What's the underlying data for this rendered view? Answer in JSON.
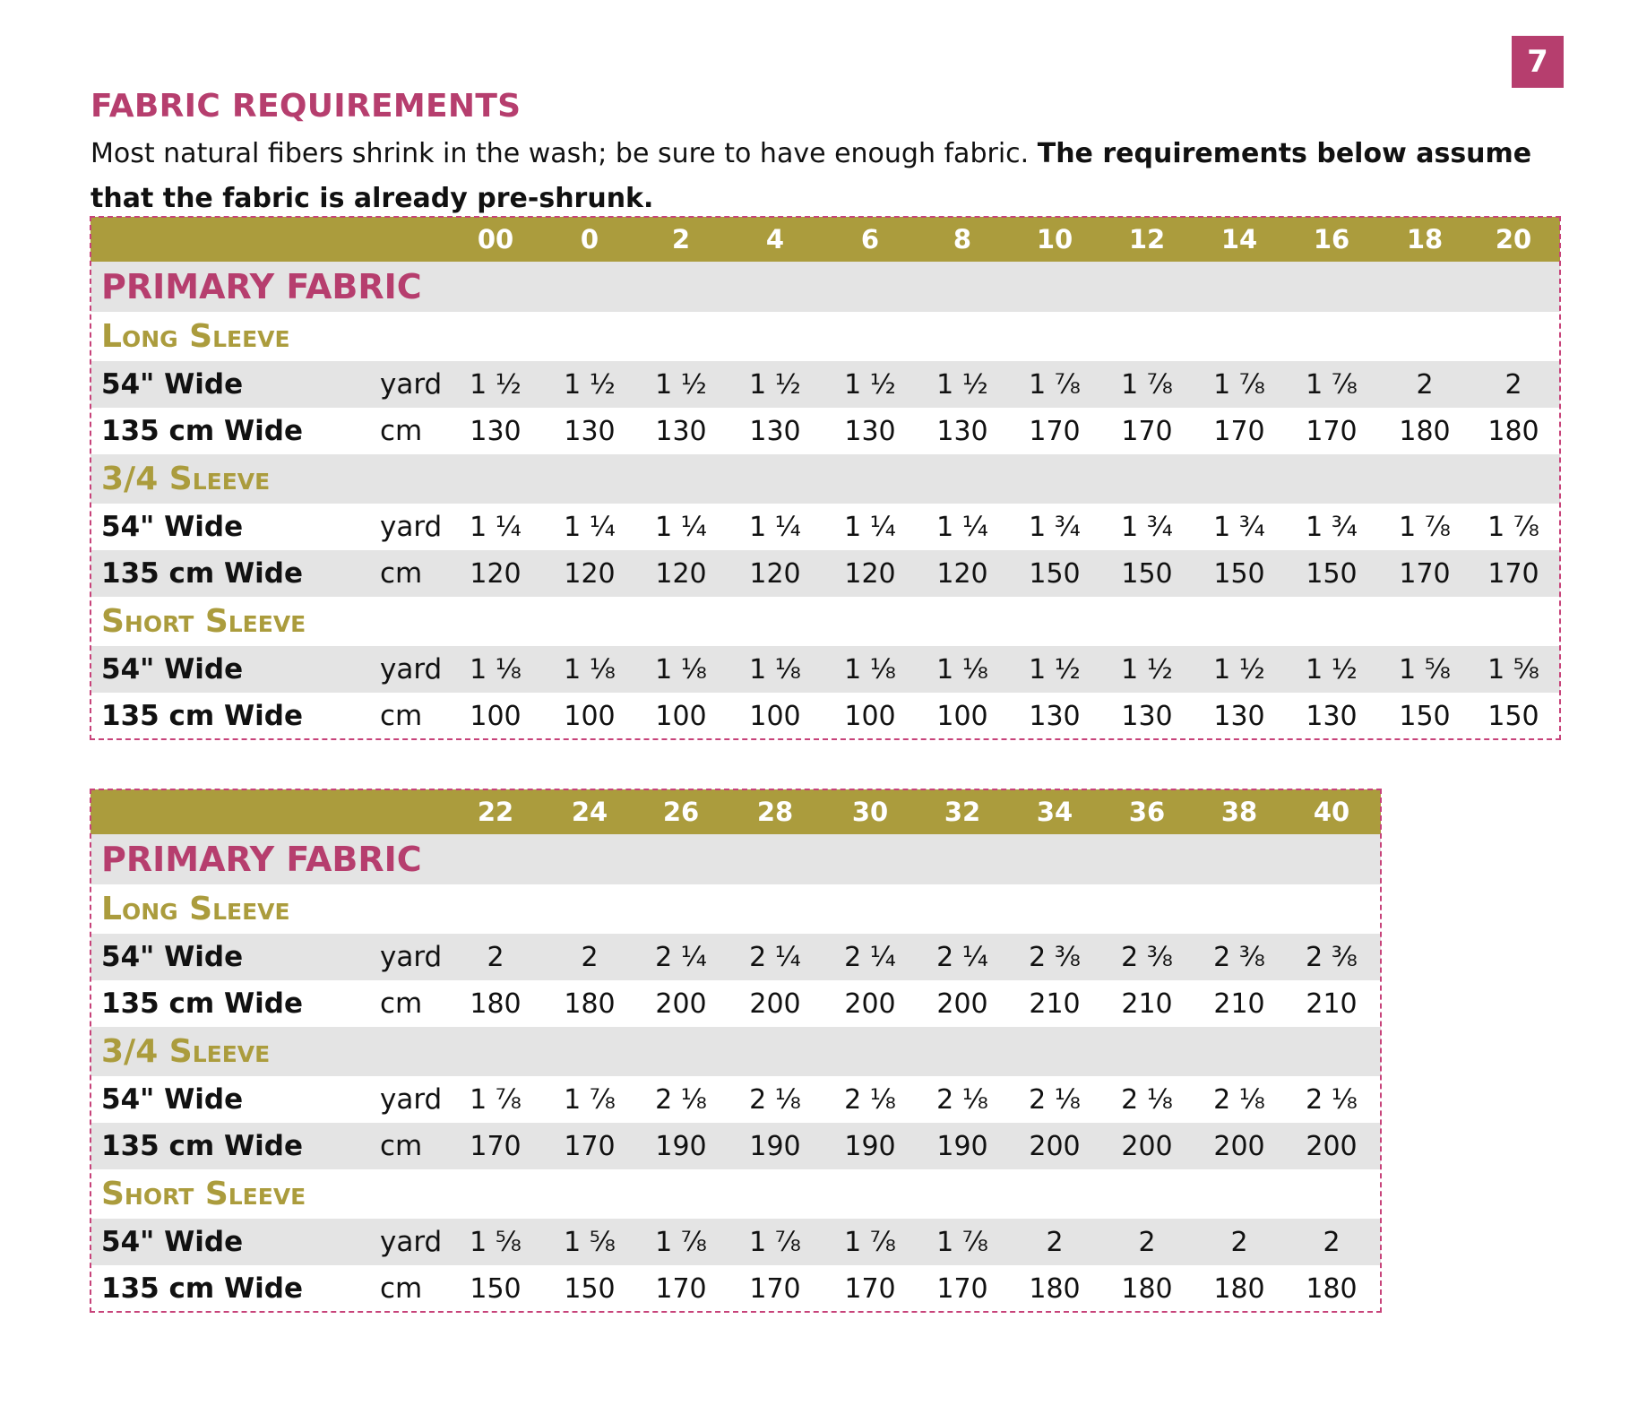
{
  "page_number": "7",
  "title": "FABRIC REQUIREMENTS",
  "intro": {
    "normal": "Most natural fibers shrink in the wash; be sure to have enough fabric. ",
    "bold": "The requirements below assume that the fabric is already pre-shrunk."
  },
  "tables": [
    {
      "sizes": [
        "00",
        "0",
        "2",
        "4",
        "6",
        "8",
        "10",
        "12",
        "14",
        "16",
        "18",
        "20"
      ],
      "fabric_label": "PRIMARY FABRIC",
      "sections": [
        {
          "label": "Long Sleeve",
          "rows": [
            {
              "label": "54\" Wide",
              "unit": "yard",
              "values": [
                "1 ½",
                "1 ½",
                "1 ½",
                "1 ½",
                "1 ½",
                "1 ½",
                "1 ⅞",
                "1 ⅞",
                "1 ⅞",
                "1 ⅞",
                "2",
                "2"
              ]
            },
            {
              "label": "135 cm Wide",
              "unit": "cm",
              "values": [
                "130",
                "130",
                "130",
                "130",
                "130",
                "130",
                "170",
                "170",
                "170",
                "170",
                "180",
                "180"
              ]
            }
          ]
        },
        {
          "label": "3/4 Sleeve",
          "rows": [
            {
              "label": "54\" Wide",
              "unit": "yard",
              "values": [
                "1 ¼",
                "1 ¼",
                "1 ¼",
                "1 ¼",
                "1 ¼",
                "1 ¼",
                "1 ¾",
                "1 ¾",
                "1 ¾",
                "1 ¾",
                "1 ⅞",
                "1 ⅞"
              ]
            },
            {
              "label": "135 cm Wide",
              "unit": "cm",
              "values": [
                "120",
                "120",
                "120",
                "120",
                "120",
                "120",
                "150",
                "150",
                "150",
                "150",
                "170",
                "170"
              ]
            }
          ]
        },
        {
          "label": "Short Sleeve",
          "rows": [
            {
              "label": "54\" Wide",
              "unit": "yard",
              "values": [
                "1 ⅛",
                "1 ⅛",
                "1 ⅛",
                "1 ⅛",
                "1 ⅛",
                "1 ⅛",
                "1 ½",
                "1 ½",
                "1 ½",
                "1 ½",
                "1 ⅝",
                "1 ⅝"
              ]
            },
            {
              "label": "135 cm Wide",
              "unit": "cm",
              "values": [
                "100",
                "100",
                "100",
                "100",
                "100",
                "100",
                "130",
                "130",
                "130",
                "130",
                "150",
                "150"
              ]
            }
          ]
        }
      ]
    },
    {
      "sizes": [
        "22",
        "24",
        "26",
        "28",
        "30",
        "32",
        "34",
        "36",
        "38",
        "40"
      ],
      "fabric_label": "PRIMARY FABRIC",
      "sections": [
        {
          "label": "Long Sleeve",
          "rows": [
            {
              "label": "54\" Wide",
              "unit": "yard",
              "values": [
                "2",
                "2",
                "2 ¼",
                "2 ¼",
                "2 ¼",
                "2 ¼",
                "2 ⅜",
                "2 ⅜",
                "2 ⅜",
                "2 ⅜"
              ]
            },
            {
              "label": "135 cm Wide",
              "unit": "cm",
              "values": [
                "180",
                "180",
                "200",
                "200",
                "200",
                "200",
                "210",
                "210",
                "210",
                "210"
              ]
            }
          ]
        },
        {
          "label": "3/4 Sleeve",
          "rows": [
            {
              "label": "54\" Wide",
              "unit": "yard",
              "values": [
                "1 ⅞",
                "1 ⅞",
                "2 ⅛",
                "2 ⅛",
                "2 ⅛",
                "2 ⅛",
                "2 ⅛",
                "2 ⅛",
                "2 ⅛",
                "2 ⅛"
              ]
            },
            {
              "label": "135 cm Wide",
              "unit": "cm",
              "values": [
                "170",
                "170",
                "190",
                "190",
                "190",
                "190",
                "200",
                "200",
                "200",
                "200"
              ]
            }
          ]
        },
        {
          "label": "Short Sleeve",
          "rows": [
            {
              "label": "54\" Wide",
              "unit": "yard",
              "values": [
                "1 ⅝",
                "1 ⅝",
                "1 ⅞",
                "1 ⅞",
                "1 ⅞",
                "1 ⅞",
                "2",
                "2",
                "2",
                "2"
              ]
            },
            {
              "label": "135 cm Wide",
              "unit": "cm",
              "values": [
                "150",
                "150",
                "170",
                "170",
                "170",
                "170",
                "180",
                "180",
                "180",
                "180"
              ]
            }
          ]
        }
      ]
    }
  ],
  "colors": {
    "accent": "#b63e6e",
    "header": "#ab9c3d",
    "row_gray": "#e4e4e4"
  }
}
